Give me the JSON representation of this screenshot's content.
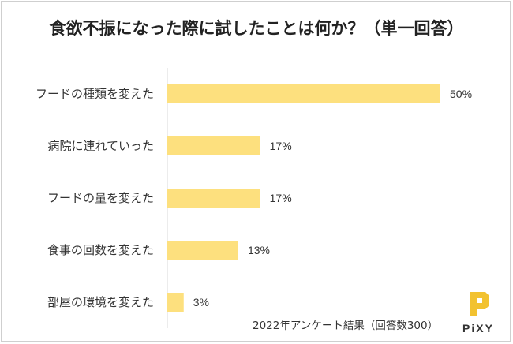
{
  "header": {
    "title": "食欲不振になった際に試したことは何か？（単一回答）"
  },
  "footer": {
    "note": "2022年アンケート結果（回答数300）"
  },
  "logo": {
    "text": "PiXY",
    "color": "#f2c230"
  },
  "colors": {
    "bar": "#fde07e",
    "axis": "#d9d9d9",
    "text": "#333333"
  },
  "chart_data": {
    "type": "bar",
    "orientation": "horizontal",
    "title": "食欲不振になった際に試したことは何か？（単一回答）",
    "categories": [
      "フードの種類を変えた",
      "病院に連れていった",
      "フードの量を変えた",
      "食事の回数を変えた",
      "部屋の環境を変えた"
    ],
    "values": [
      50,
      17,
      17,
      13,
      3
    ],
    "value_labels": [
      "50%",
      "17%",
      "17%",
      "13%",
      "3%"
    ],
    "unit": "%",
    "xlim": [
      0,
      50
    ],
    "grid": false,
    "legend": "none"
  }
}
